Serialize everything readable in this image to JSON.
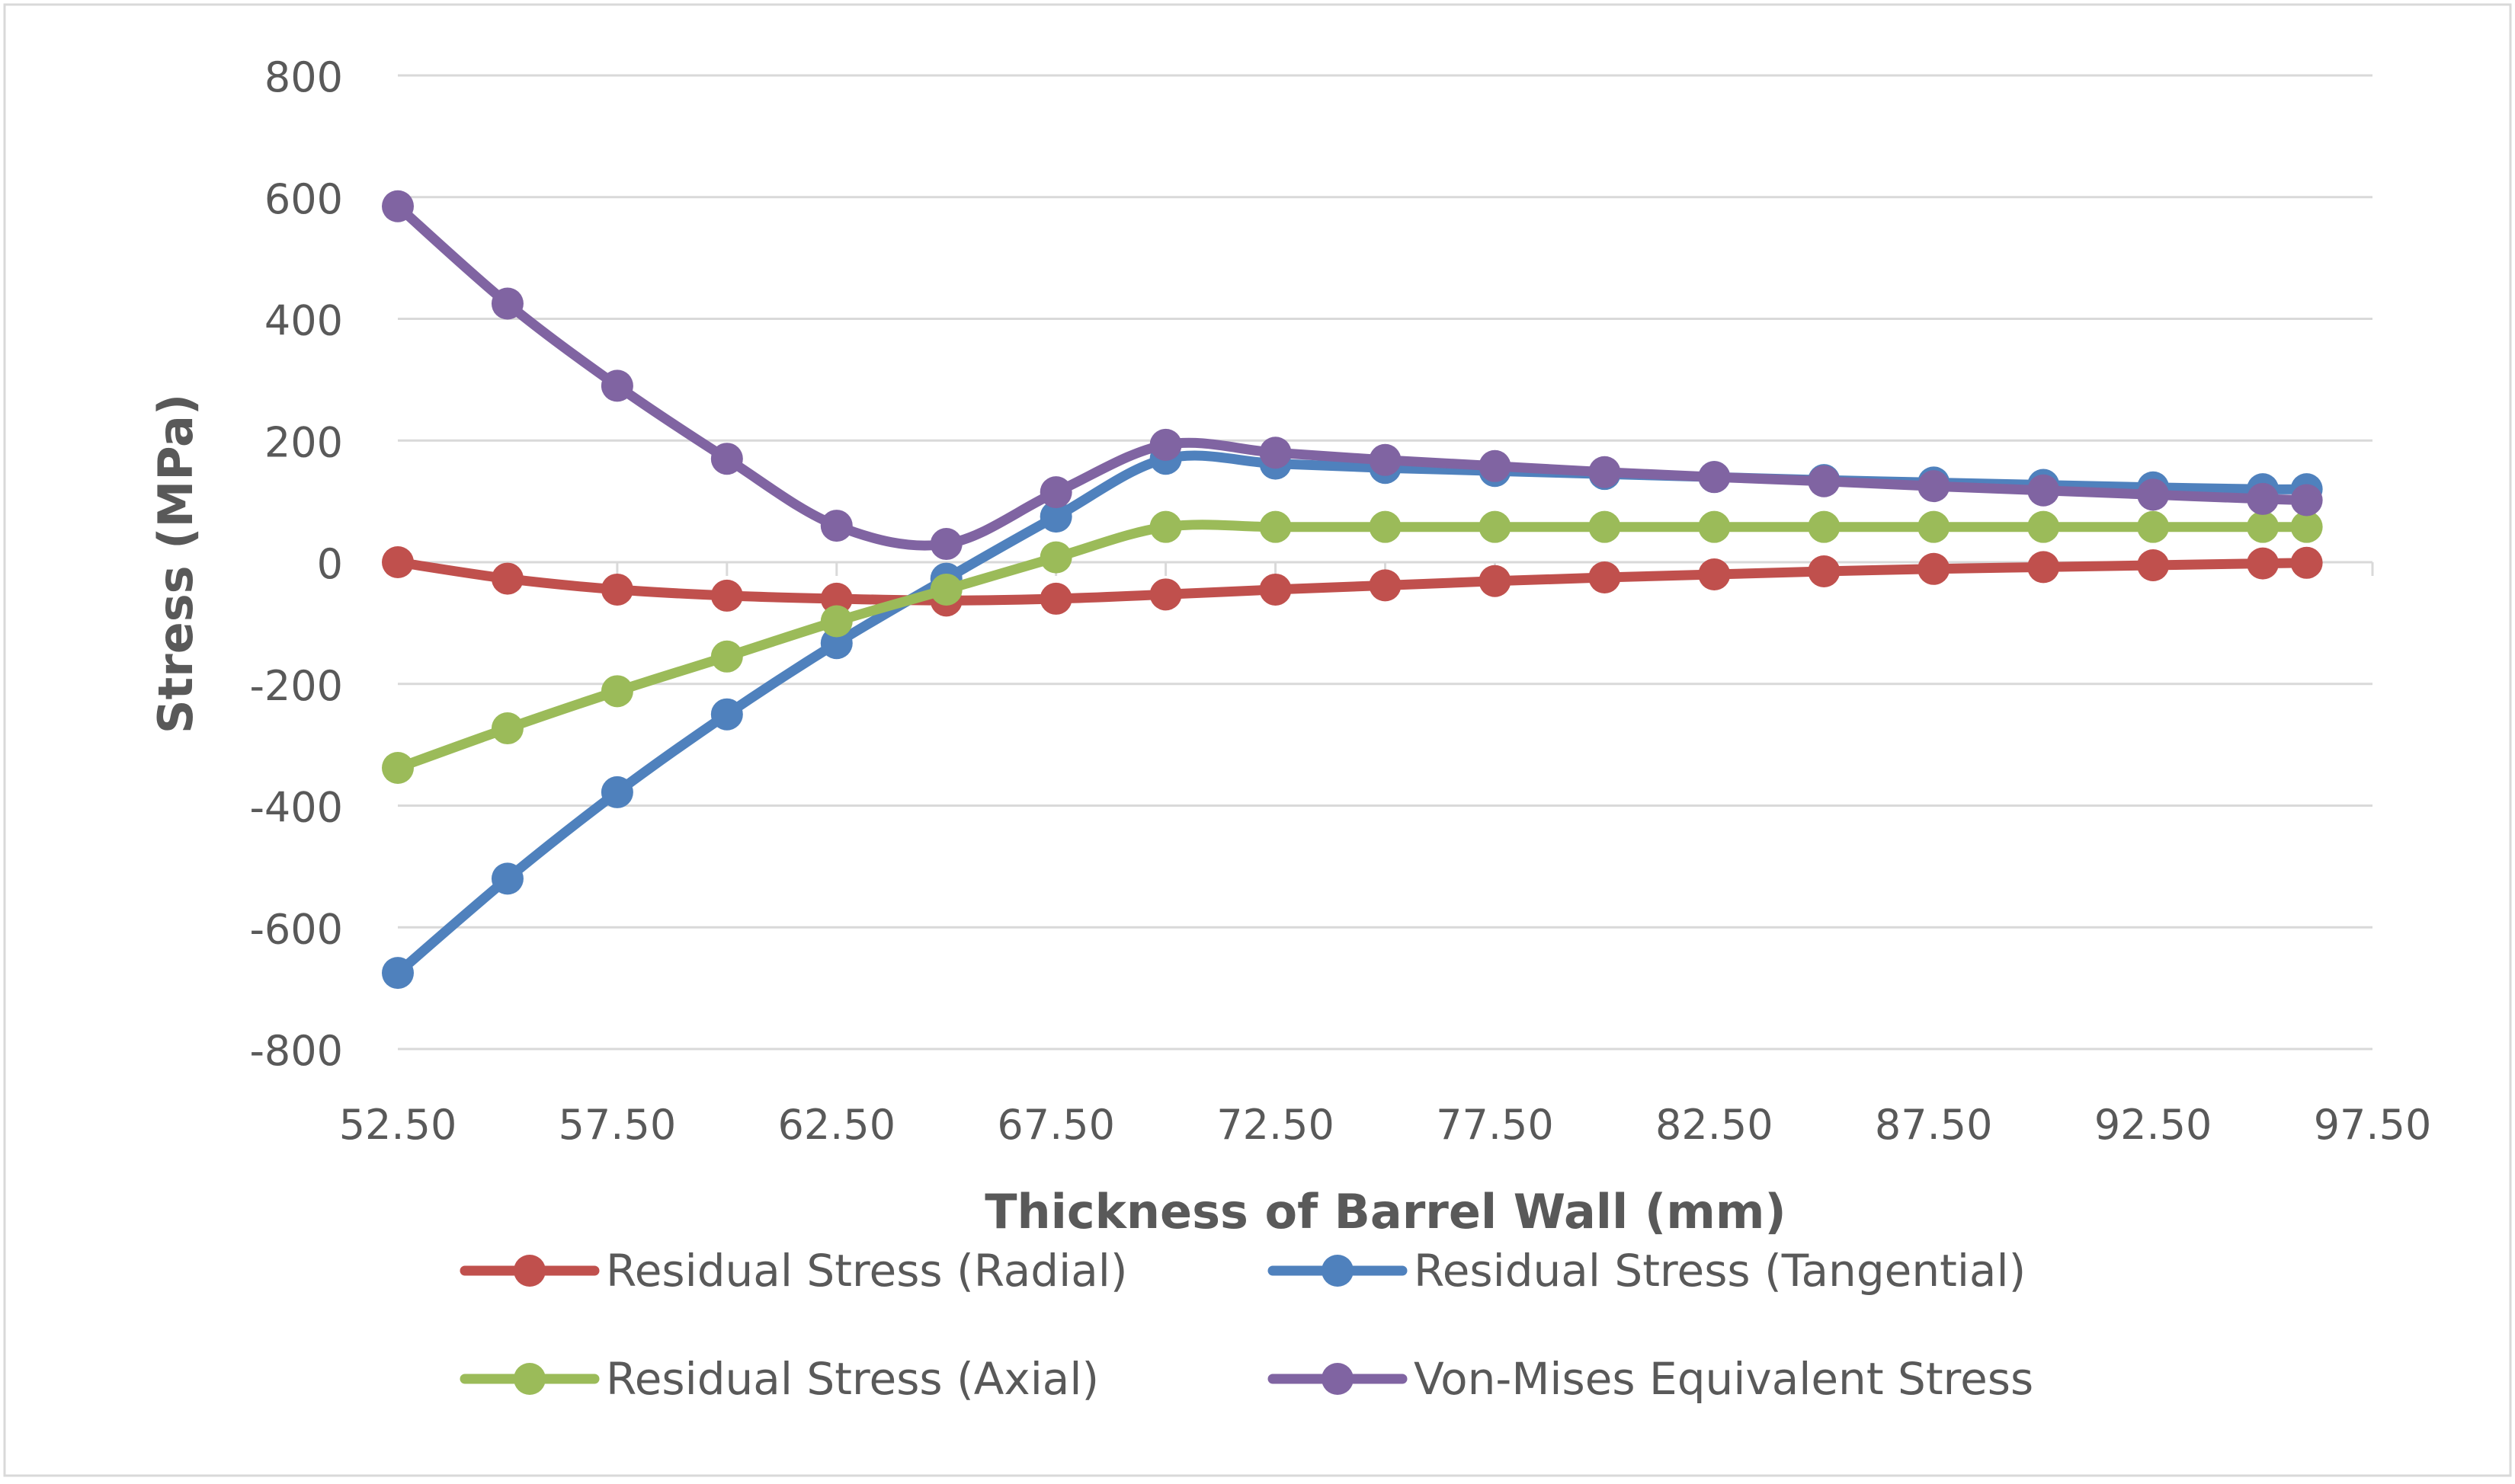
{
  "chart_data": {
    "type": "line",
    "title": "",
    "xlabel": "Thickness of Barrel Wall (mm)",
    "ylabel": "Stress (MPa)",
    "xlim": [
      52.5,
      97.5
    ],
    "ylim": [
      -800,
      800
    ],
    "x_ticks": [
      "52.50",
      "57.50",
      "62.50",
      "67.50",
      "72.50",
      "77.50",
      "82.50",
      "87.50",
      "92.50",
      "97.50"
    ],
    "y_ticks": [
      "800",
      "600",
      "400",
      "200",
      "0",
      "-200",
      "-400",
      "-600",
      "-800"
    ],
    "x_tick_values": [
      52.5,
      57.5,
      62.5,
      67.5,
      72.5,
      77.5,
      82.5,
      87.5,
      92.5,
      97.5
    ],
    "y_tick_values": [
      800,
      600,
      400,
      200,
      0,
      -200,
      -400,
      -600,
      -800
    ],
    "grid": true,
    "legend_position": "bottom",
    "x": [
      52.5,
      55,
      57.5,
      60,
      62.5,
      65,
      67.5,
      70,
      72.5,
      75,
      77.5,
      80,
      82.5,
      85,
      87.5,
      90,
      92.5,
      95,
      96
    ],
    "series": [
      {
        "name": "Residual Stress (Radial)",
        "color": "#c0504d",
        "values": [
          0,
          -27,
          -45,
          -55,
          -60,
          -63,
          -60,
          -53,
          -45,
          -38,
          -31,
          -25,
          -20,
          -15,
          -11,
          -8,
          -5,
          -2,
          -1
        ]
      },
      {
        "name": "Residual Stress (Tangential)",
        "color": "#4f81bd",
        "values": [
          -675,
          -520,
          -378,
          -250,
          -133,
          -27,
          75,
          170,
          162,
          155,
          150,
          145,
          140,
          135,
          131,
          127,
          123,
          120,
          120
        ]
      },
      {
        "name": "Residual Stress (Axial)",
        "color": "#9bbb59",
        "values": [
          -338,
          -273,
          -212,
          -155,
          -97,
          -45,
          8,
          58,
          58,
          58,
          58,
          58,
          58,
          58,
          58,
          58,
          58,
          58,
          58
        ]
      },
      {
        "name": "Von-Mises Equivalent Stress",
        "color": "#8064a2",
        "values": [
          585,
          425,
          290,
          170,
          60,
          30,
          115,
          193,
          180,
          168,
          158,
          148,
          140,
          133,
          125,
          118,
          111,
          104,
          102
        ]
      }
    ]
  }
}
